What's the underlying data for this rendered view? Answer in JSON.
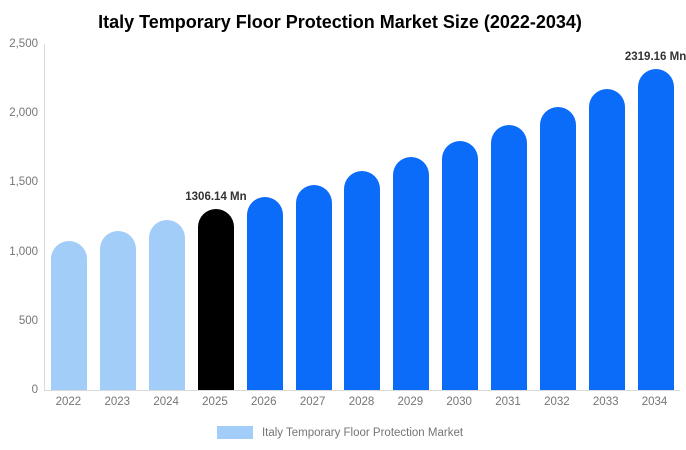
{
  "chart_data": {
    "type": "bar",
    "title": "Italy Temporary Floor Protection Market Size (2022-2034)",
    "categories": [
      "2022",
      "2023",
      "2024",
      "2025",
      "2026",
      "2027",
      "2028",
      "2029",
      "2030",
      "2031",
      "2032",
      "2033",
      "2034"
    ],
    "values": [
      1078,
      1150,
      1225,
      1306.14,
      1392,
      1484,
      1582,
      1686,
      1797,
      1916,
      2042,
      2177,
      2319.16
    ],
    "unit": "Mn",
    "xlabel": "",
    "ylabel": "",
    "ylim": [
      0,
      2500
    ],
    "ytick_labels": [
      "0",
      "500",
      "1,000",
      "1,500",
      "2,000",
      "2,500"
    ],
    "grid": false,
    "legend_position": "bottom",
    "bar_color_roles": [
      "historical",
      "historical",
      "historical",
      "base_year",
      "forecast",
      "forecast",
      "forecast",
      "forecast",
      "forecast",
      "forecast",
      "forecast",
      "forecast",
      "forecast"
    ],
    "annotations": [
      {
        "category": "2025",
        "text": "1306.14 Mn"
      },
      {
        "category": "2034",
        "text": "2319.16 Mn"
      }
    ]
  },
  "legend": {
    "label": "Italy Temporary Floor Protection Market"
  },
  "colors": {
    "historical": "#a2cdf8",
    "base_year": "#000000",
    "forecast": "#0a6cf8",
    "axis_line": "#d9d9d9",
    "tick_text": "#757575",
    "annotation_text": "#333333",
    "title_text": "#000000",
    "background": "#ffffff"
  }
}
